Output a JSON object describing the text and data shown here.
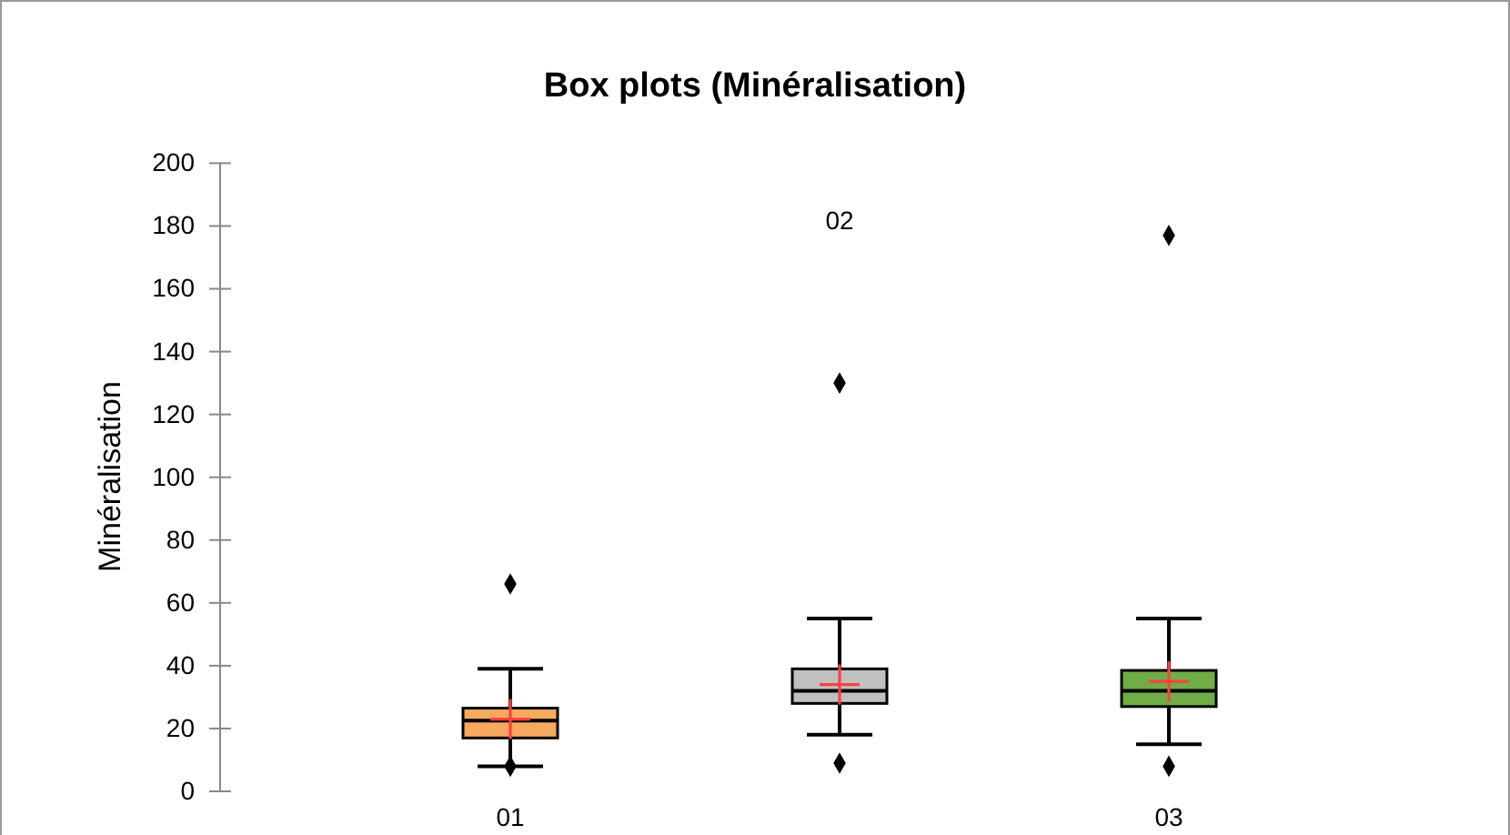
{
  "chart_data": {
    "type": "box",
    "title": "Box plots (Minéralisation)",
    "ylabel": "Minéralisation",
    "categories": [
      "01",
      "02",
      "03"
    ],
    "ylim": [
      0,
      200
    ],
    "yticks": [
      0,
      20,
      40,
      60,
      80,
      100,
      120,
      140,
      160,
      180,
      200
    ],
    "colors": [
      "#f6a95f",
      "#c0c0c0",
      "#70ad47"
    ],
    "boxes": [
      {
        "low": 8,
        "q1": 17,
        "median": 22.5,
        "q3": 26.5,
        "high": 39,
        "mean": 23,
        "outliers": [
          66,
          8
        ]
      },
      {
        "low": 18,
        "q1": 28,
        "median": 32,
        "q3": 39,
        "high": 55,
        "mean": 34,
        "outliers": [
          130,
          9
        ]
      },
      {
        "low": 15,
        "q1": 27,
        "median": 32,
        "q3": 38.5,
        "high": 55,
        "mean": 35,
        "outliers": [
          177,
          8
        ]
      }
    ]
  }
}
